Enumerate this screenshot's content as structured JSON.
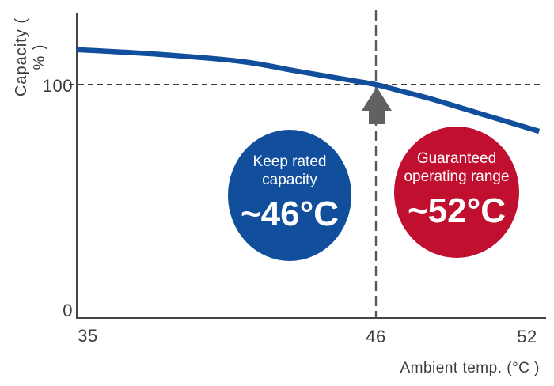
{
  "axes": {
    "y_label": "Capacity ( % )",
    "x_label": "Ambient temp. (°C )",
    "y_ticks": [
      "100",
      "0"
    ],
    "x_ticks": [
      "35",
      "46",
      "52"
    ]
  },
  "annotations": {
    "keep_rated": {
      "line1": "Keep rated",
      "line2": "capacity",
      "value": "~46°C",
      "color": "#114f9c"
    },
    "guaranteed": {
      "line1": "Guaranteed",
      "line2": "operating range",
      "value": "~52°C",
      "color": "#c10f2f"
    },
    "arrow": {
      "points_to_x": 46,
      "points_to_y": 100,
      "color": "#606163"
    }
  },
  "colors": {
    "curve": "#114f9c",
    "axis": "#454547",
    "dashed_horizontal": "#3d3d3f",
    "dashed_vertical": "#58595b",
    "background": "#ffffff",
    "text": "#3b3b3c"
  },
  "chart_data": {
    "type": "line",
    "title": "",
    "xlabel": "Ambient temp. (°C )",
    "ylabel": "Capacity ( % )",
    "x": [
      35,
      38,
      41,
      43,
      44,
      45,
      46,
      47,
      48,
      50,
      52
    ],
    "series": [
      {
        "name": "Capacity vs ambient temperature",
        "values": [
          115,
          113,
          110,
          106,
          104,
          102,
          100,
          97,
          94,
          87,
          80
        ],
        "color": "#114f9c"
      }
    ],
    "xlim": [
      35,
      52.6
    ],
    "ylim": [
      0,
      130
    ],
    "x_tick_labels": [
      "35",
      "46",
      "52"
    ],
    "y_tick_labels": [
      "0",
      "100"
    ],
    "grid": false,
    "legend": false,
    "reference_lines": [
      {
        "axis": "y",
        "value": 100,
        "style": "dashed"
      },
      {
        "axis": "x",
        "value": 46,
        "style": "long-dashed"
      }
    ],
    "annotations": [
      {
        "text": "Keep rated capacity ~46°C",
        "shape": "circle",
        "color": "#114f9c"
      },
      {
        "text": "Guaranteed operating range ~52°C",
        "shape": "circle",
        "color": "#c10f2f"
      },
      {
        "type": "arrow-up",
        "points_to": {
          "x": 46,
          "y": 100
        }
      }
    ]
  }
}
